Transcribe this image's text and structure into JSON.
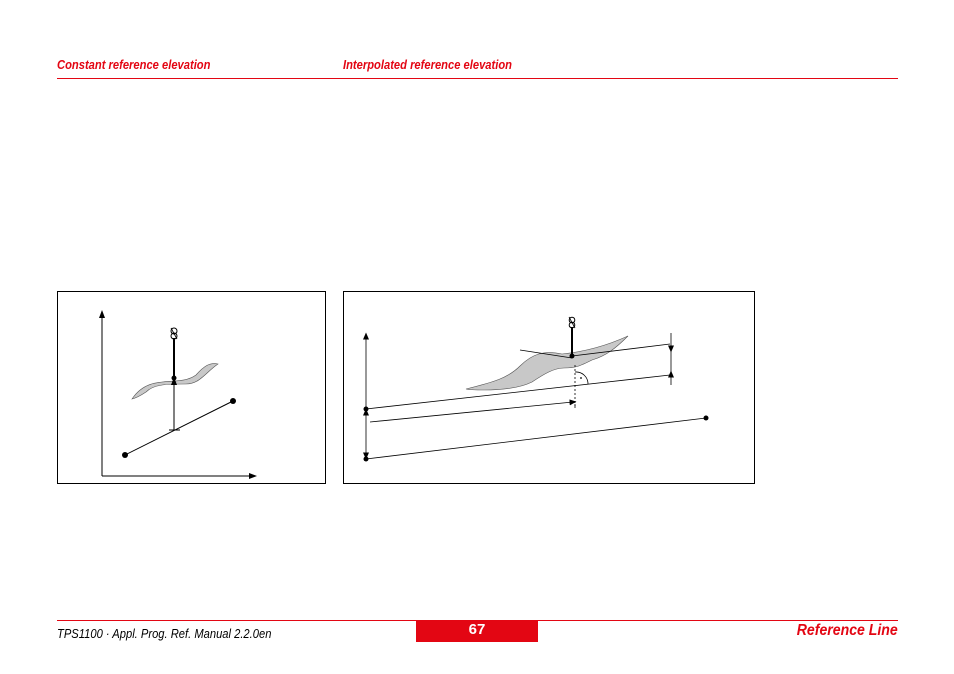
{
  "header": {
    "left_title": "Constant reference elevation",
    "right_title": "Interpolated reference elevation"
  },
  "footer": {
    "manual": "TPS1100 · Appl. Prog. Ref. Manual 2.2.0en",
    "page_number": "67",
    "section": "Reference Line"
  },
  "colors": {
    "accent": "#e30613",
    "terrain": "#c8c8c8"
  }
}
